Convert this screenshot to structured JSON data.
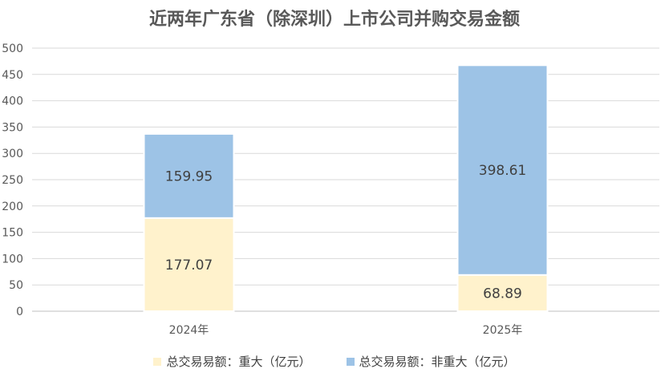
{
  "chart_data": {
    "type": "bar",
    "stacked": true,
    "title": "近两年广东省（除深圳）上市公司并购交易金额",
    "categories": [
      "2024年",
      "2025年"
    ],
    "series": [
      {
        "name": "总交易易额：重大（亿元）",
        "values": [
          177.07,
          68.89
        ],
        "color": "#FFF2CC"
      },
      {
        "name": "总交易易额：非重大（亿元）",
        "values": [
          159.95,
          398.61
        ],
        "color": "#9DC3E6"
      }
    ],
    "ylim": [
      0,
      500
    ],
    "yticks": [
      0,
      50,
      100,
      150,
      200,
      250,
      300,
      350,
      400,
      450,
      500
    ],
    "xlabel": "",
    "ylabel": "",
    "grid": true,
    "legend": "bottom",
    "data_labels": true
  }
}
